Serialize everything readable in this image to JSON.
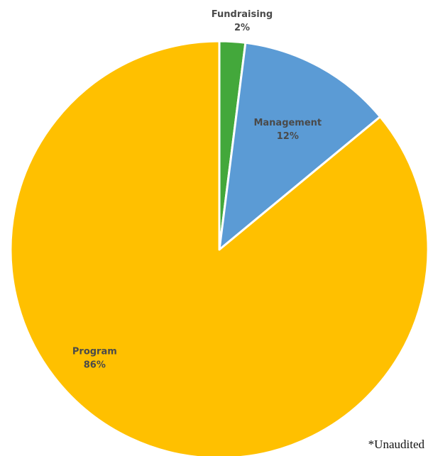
{
  "chart_data": {
    "type": "pie",
    "title": "",
    "start_angle_deg": 0,
    "direction": "clockwise",
    "slices": [
      {
        "label": "Fundraising",
        "value": 2,
        "display": "2%",
        "color": "#43a83b"
      },
      {
        "label": "Management",
        "value": 12,
        "display": "12%",
        "color": "#5b9bd5"
      },
      {
        "label": "Program",
        "value": 86,
        "display": "86%",
        "color": "#ffc000"
      }
    ],
    "slice_border_color": "#ffffff",
    "legend": "none"
  },
  "footnote": "*Unaudited"
}
